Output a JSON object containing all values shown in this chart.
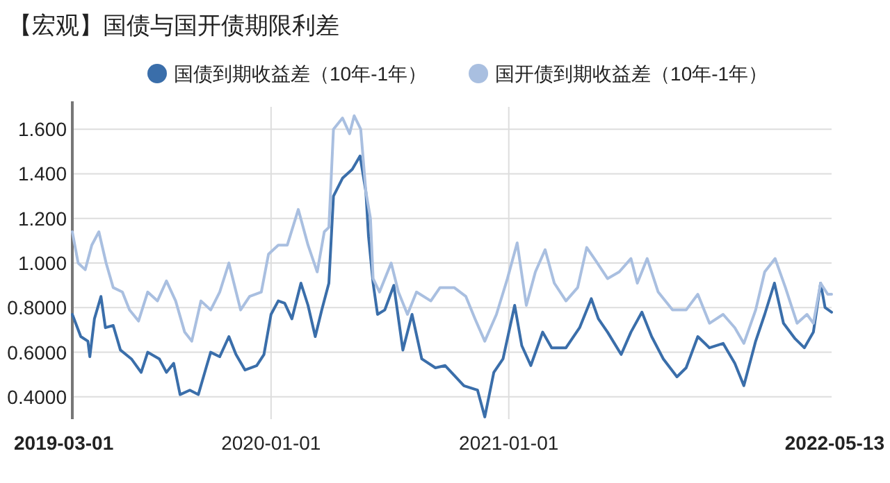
{
  "chart_data": {
    "type": "line",
    "title": "【宏观】国债与国开债期限利差",
    "legend": "top",
    "grid": true,
    "marker": "none",
    "line_style": "solid",
    "xlim": [
      "2019-03-01",
      "2022-05-13"
    ],
    "xticks": [
      "2019-03-01",
      "2020-01-01",
      "2021-01-01",
      "2022-05-13"
    ],
    "ylim": [
      0.3,
      1.7
    ],
    "yticks": [
      {
        "value": 0.4,
        "label": "0.4000"
      },
      {
        "value": 0.6,
        "label": "0.6000"
      },
      {
        "value": 0.8,
        "label": "0.8000"
      },
      {
        "value": 1.0,
        "label": "1.000"
      },
      {
        "value": 1.2,
        "label": "1.200"
      },
      {
        "value": 1.4,
        "label": "1.400"
      },
      {
        "value": 1.6,
        "label": "1.600"
      }
    ],
    "series": [
      {
        "name": "国债到期收益差（10年-1年）",
        "color": "#3a6eaa",
        "x": [
          "2019-03-01",
          "2019-03-14",
          "2019-03-25",
          "2019-03-28",
          "2019-04-04",
          "2019-04-14",
          "2019-04-21",
          "2019-05-03",
          "2019-05-14",
          "2019-05-31",
          "2019-06-15",
          "2019-06-25",
          "2019-07-13",
          "2019-07-24",
          "2019-08-04",
          "2019-08-14",
          "2019-08-29",
          "2019-09-11",
          "2019-09-23",
          "2019-09-30",
          "2019-10-14",
          "2019-10-28",
          "2019-11-08",
          "2019-11-22",
          "2019-12-10",
          "2019-12-21",
          "2020-01-01",
          "2020-01-12",
          "2020-01-22",
          "2020-02-02",
          "2020-02-16",
          "2020-02-27",
          "2020-03-09",
          "2020-03-19",
          "2020-03-30",
          "2020-04-06",
          "2020-04-20",
          "2020-05-05",
          "2020-05-17",
          "2020-05-26",
          "2020-05-30",
          "2020-06-06",
          "2020-06-13",
          "2020-06-24",
          "2020-07-08",
          "2020-07-22",
          "2020-08-05",
          "2020-08-20",
          "2020-09-10",
          "2020-09-25",
          "2020-10-24",
          "2020-11-14",
          "2020-11-25",
          "2020-12-09",
          "2020-12-23",
          "2021-01-10",
          "2021-01-21",
          "2021-02-04",
          "2021-02-22",
          "2021-03-08",
          "2021-03-30",
          "2021-04-20",
          "2021-05-08",
          "2021-05-19",
          "2021-06-02",
          "2021-06-23",
          "2021-07-08",
          "2021-07-25",
          "2021-08-09",
          "2021-08-27",
          "2021-09-17",
          "2021-10-01",
          "2021-10-19",
          "2021-11-06",
          "2021-11-27",
          "2021-12-15",
          "2021-12-29",
          "2022-01-16",
          "2022-01-30",
          "2022-02-14",
          "2022-02-28",
          "2022-03-18",
          "2022-04-01",
          "2022-04-15",
          "2022-04-26",
          "2022-05-03",
          "2022-05-13"
        ],
        "values": [
          0.77,
          0.67,
          0.65,
          0.58,
          0.75,
          0.85,
          0.71,
          0.72,
          0.61,
          0.57,
          0.51,
          0.6,
          0.57,
          0.51,
          0.55,
          0.41,
          0.43,
          0.41,
          0.53,
          0.6,
          0.58,
          0.67,
          0.59,
          0.52,
          0.54,
          0.59,
          0.77,
          0.83,
          0.82,
          0.75,
          0.91,
          0.81,
          0.67,
          0.79,
          0.91,
          1.3,
          1.38,
          1.42,
          1.48,
          1.32,
          1.12,
          0.91,
          0.77,
          0.79,
          0.9,
          0.61,
          0.77,
          0.57,
          0.53,
          0.54,
          0.45,
          0.43,
          0.31,
          0.51,
          0.57,
          0.81,
          0.63,
          0.54,
          0.69,
          0.62,
          0.62,
          0.71,
          0.84,
          0.75,
          0.69,
          0.59,
          0.69,
          0.78,
          0.67,
          0.57,
          0.49,
          0.53,
          0.67,
          0.62,
          0.64,
          0.55,
          0.45,
          0.65,
          0.77,
          0.91,
          0.73,
          0.66,
          0.62,
          0.69,
          0.91,
          0.8,
          0.78
        ]
      },
      {
        "name": "国开债到期收益差（10年-1年）",
        "color": "#a9bfe0",
        "x": [
          "2019-03-01",
          "2019-03-10",
          "2019-03-21",
          "2019-03-31",
          "2019-04-11",
          "2019-04-22",
          "2019-05-03",
          "2019-05-17",
          "2019-05-28",
          "2019-06-11",
          "2019-06-25",
          "2019-07-10",
          "2019-07-24",
          "2019-08-07",
          "2019-08-21",
          "2019-09-01",
          "2019-09-15",
          "2019-09-30",
          "2019-10-14",
          "2019-10-28",
          "2019-11-15",
          "2019-11-29",
          "2019-12-17",
          "2019-12-28",
          "2020-01-12",
          "2020-01-26",
          "2020-02-12",
          "2020-02-27",
          "2020-03-12",
          "2020-03-23",
          "2020-03-30",
          "2020-04-06",
          "2020-04-20",
          "2020-05-01",
          "2020-05-08",
          "2020-05-18",
          "2020-05-26",
          "2020-06-02",
          "2020-06-06",
          "2020-06-16",
          "2020-07-04",
          "2020-07-15",
          "2020-07-29",
          "2020-08-12",
          "2020-09-03",
          "2020-09-17",
          "2020-10-09",
          "2020-10-27",
          "2020-11-10",
          "2020-11-25",
          "2020-12-13",
          "2020-12-30",
          "2021-01-14",
          "2021-01-28",
          "2021-02-11",
          "2021-02-26",
          "2021-03-12",
          "2021-03-30",
          "2021-04-17",
          "2021-05-01",
          "2021-05-15",
          "2021-06-02",
          "2021-06-20",
          "2021-07-08",
          "2021-07-18",
          "2021-08-02",
          "2021-08-19",
          "2021-09-10",
          "2021-10-01",
          "2021-10-19",
          "2021-11-06",
          "2021-11-27",
          "2021-12-15",
          "2021-12-29",
          "2022-01-16",
          "2022-01-30",
          "2022-02-15",
          "2022-03-03",
          "2022-03-21",
          "2022-04-05",
          "2022-04-15",
          "2022-04-26",
          "2022-05-07",
          "2022-05-13"
        ],
        "values": [
          1.14,
          1.0,
          0.97,
          1.08,
          1.14,
          1.0,
          0.89,
          0.87,
          0.79,
          0.74,
          0.87,
          0.83,
          0.92,
          0.83,
          0.69,
          0.65,
          0.83,
          0.79,
          0.87,
          1.0,
          0.79,
          0.85,
          0.87,
          1.04,
          1.08,
          1.08,
          1.24,
          1.08,
          0.96,
          1.14,
          1.16,
          1.6,
          1.65,
          1.58,
          1.66,
          1.6,
          1.32,
          1.2,
          0.93,
          0.87,
          1.0,
          0.87,
          0.77,
          0.87,
          0.83,
          0.89,
          0.89,
          0.85,
          0.75,
          0.65,
          0.77,
          0.93,
          1.09,
          0.81,
          0.96,
          1.06,
          0.91,
          0.83,
          0.89,
          1.07,
          1.01,
          0.93,
          0.96,
          1.02,
          0.91,
          1.02,
          0.87,
          0.79,
          0.79,
          0.86,
          0.73,
          0.77,
          0.71,
          0.64,
          0.79,
          0.96,
          1.02,
          0.89,
          0.73,
          0.77,
          0.73,
          0.91,
          0.86,
          0.86
        ]
      }
    ]
  }
}
